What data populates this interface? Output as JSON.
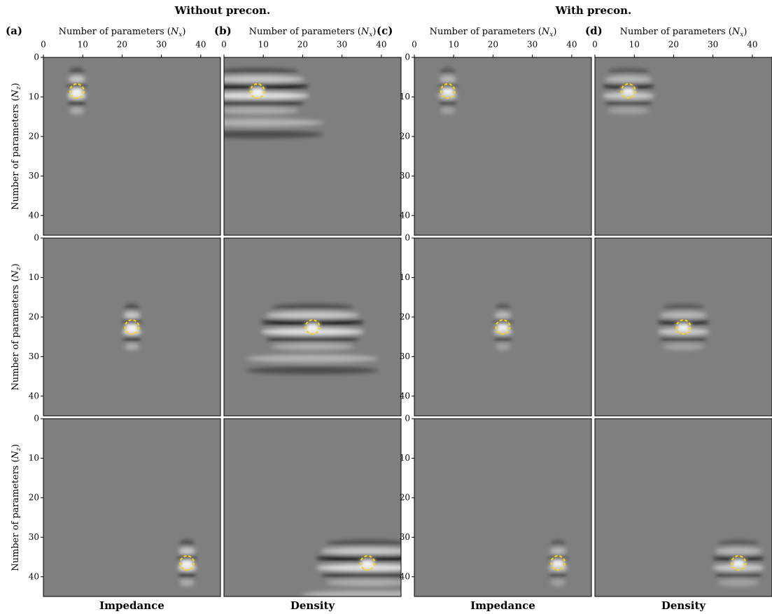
{
  "groups": [
    "Without precon.",
    "With precon."
  ],
  "panels": {
    "labels": [
      "(a)",
      "(b)",
      "(c)",
      "(d)"
    ],
    "columns": [
      "Impedance",
      "Density",
      "Impedance",
      "Density"
    ]
  },
  "axis": {
    "xlabel": {
      "prefix": "Number of parameters (",
      "symbol": "N",
      "subscript": "x",
      "suffix": ")"
    },
    "ylabel": {
      "prefix": "Number of parameters (",
      "symbol": "N",
      "subscript": "z",
      "suffix": ")"
    },
    "xlim": [
      0,
      45
    ],
    "ylim": [
      0,
      45
    ],
    "xticks": [
      0,
      10,
      20,
      30,
      40
    ],
    "yticks": [
      0,
      10,
      20,
      30,
      40
    ]
  },
  "rows": [
    {
      "focus": {
        "x": 8.5,
        "z": 8.5
      }
    },
    {
      "focus": {
        "x": 22.5,
        "z": 22.5
      }
    },
    {
      "focus": {
        "x": 36.5,
        "z": 36.5
      }
    }
  ]
}
